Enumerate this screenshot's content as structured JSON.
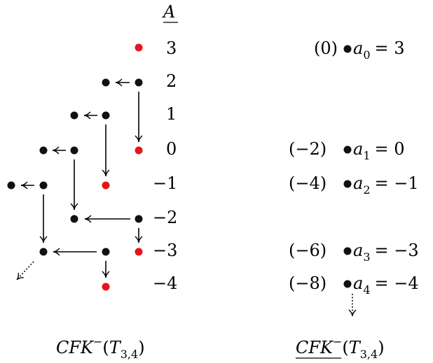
{
  "left_diagram": {
    "axis_label": "A",
    "levels": [
      "3",
      "2",
      "1",
      "0",
      "−1",
      "−2",
      "−3",
      "−4"
    ],
    "caption": {
      "base": "CFK",
      "sup": "−",
      "paren_open": "(",
      "knot": "T",
      "knot_sub": "3,4",
      "paren_close": ")"
    },
    "colors": {
      "red_generator": "#e8141a",
      "black_generator": "#111111"
    }
  },
  "right_diagram": {
    "rows": [
      {
        "grading": "(0)",
        "gen": "a",
        "sub": "0",
        "eq": "= 3"
      },
      {
        "grading": "(−2)",
        "gen": "a",
        "sub": "1",
        "eq": "= 0"
      },
      {
        "grading": "(−4)",
        "gen": "a",
        "sub": "2",
        "eq": "= −1"
      },
      {
        "grading": "(−6)",
        "gen": "a",
        "sub": "3",
        "eq": "= −3"
      },
      {
        "grading": "(−8)",
        "gen": "a",
        "sub": "4",
        "eq": "= −4"
      }
    ],
    "caption": {
      "base": "CFK",
      "sup": "−",
      "paren_open": "(",
      "knot": "T",
      "knot_sub": "3,4",
      "paren_close": ")"
    }
  }
}
